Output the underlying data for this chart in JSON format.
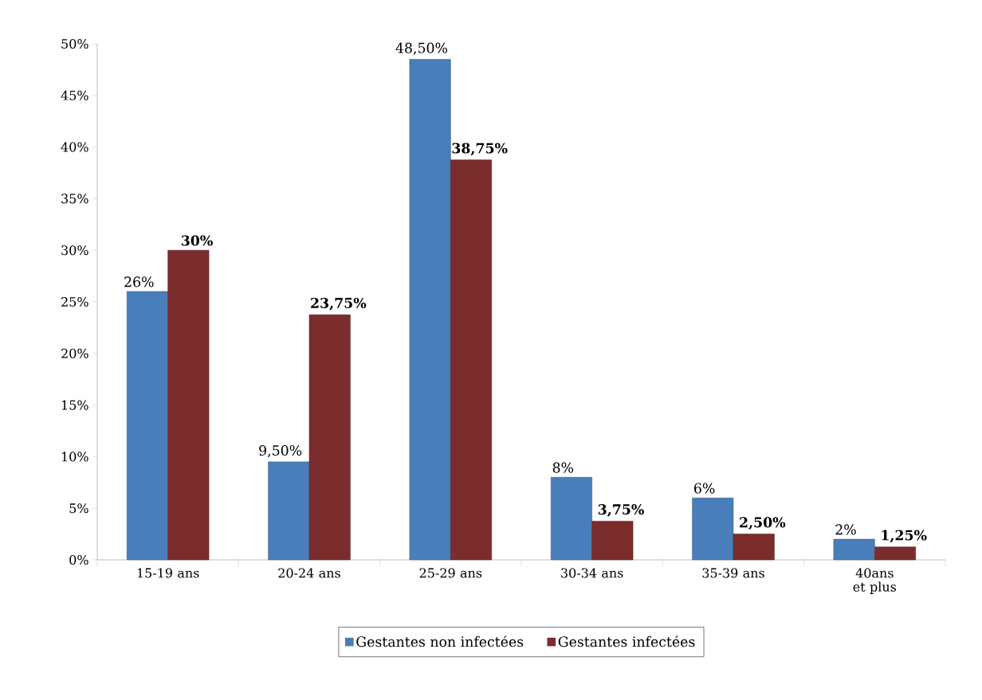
{
  "chart_data": {
    "type": "bar",
    "categories": [
      "15-19 ans",
      "20-24 ans",
      "25-29 ans",
      "30-34 ans",
      "35-39 ans",
      "40ans et plus"
    ],
    "series": [
      {
        "name": "Gestantes non infectées",
        "color": "#4a7ebb",
        "values": [
          26,
          9.5,
          48.5,
          8,
          6,
          2
        ],
        "value_labels": [
          "26%",
          "9,50%",
          "48,50%",
          "8%",
          "6%",
          "2%"
        ]
      },
      {
        "name": "Gestantes infectées",
        "color": "#7b2c2c",
        "values": [
          30,
          23.75,
          38.75,
          3.75,
          2.5,
          1.25
        ],
        "value_labels": [
          "**30%**",
          "**23,75%**",
          "**38,75%**",
          "**3,75%**",
          "**2,50%**",
          "**1,25%**"
        ]
      }
    ],
    "ylim": [
      0,
      50
    ],
    "yticks": [
      {
        "value": 0,
        "label": "0%"
      },
      {
        "value": 5,
        "label": "5%"
      },
      {
        "value": 10,
        "label": "10%"
      },
      {
        "value": 15,
        "label": "15%"
      },
      {
        "value": 20,
        "label": "20%"
      },
      {
        "value": 25,
        "label": "25%"
      },
      {
        "value": 30,
        "label": "30%"
      },
      {
        "value": 35,
        "label": "35%"
      },
      {
        "value": 40,
        "label": "40%"
      },
      {
        "value": 45,
        "label": "45%"
      },
      {
        "value": 50,
        "label": "50%"
      }
    ],
    "grid": false,
    "legend": "bottom"
  }
}
